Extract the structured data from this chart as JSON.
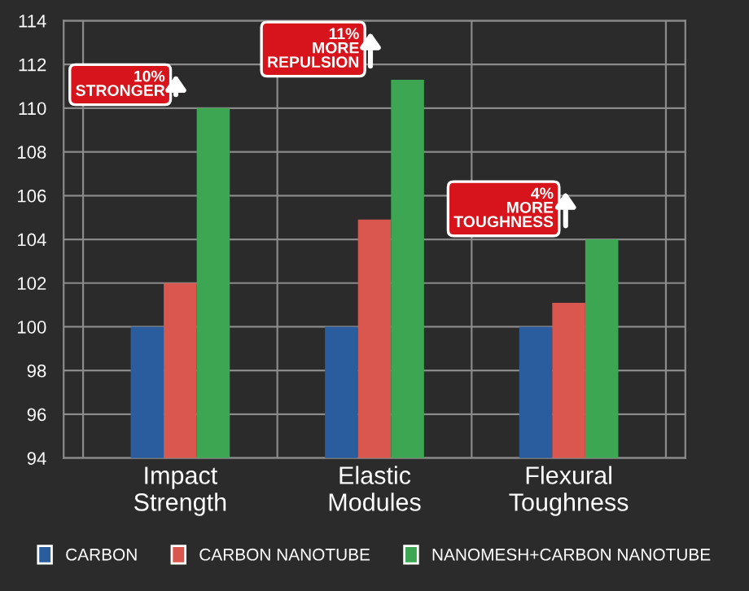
{
  "chart_data": {
    "type": "bar",
    "categories": [
      "Impact\nStrength",
      "Elastic\nModules",
      "Flexural\nToughness"
    ],
    "series": [
      {
        "name": "CARBON",
        "color": "#2a5d9e",
        "values": [
          100,
          100,
          100
        ]
      },
      {
        "name": "CARBON NANOTUBE",
        "color": "#d9574e",
        "values": [
          102,
          104.9,
          101.1
        ]
      },
      {
        "name": "NANOMESH+CARBON NANOTUBE",
        "color": "#3ca653",
        "values": [
          110,
          111.3,
          104
        ]
      }
    ],
    "ylim": [
      94,
      114
    ],
    "yticks": [
      94,
      96,
      98,
      100,
      102,
      104,
      106,
      108,
      110,
      112,
      114
    ],
    "grid": true,
    "legend": "bottom",
    "annotations": [
      "10%\nSTRONGER",
      "11%\nMORE\nREPULSION",
      "4%\nMORE\nTOUGHNESS"
    ]
  }
}
